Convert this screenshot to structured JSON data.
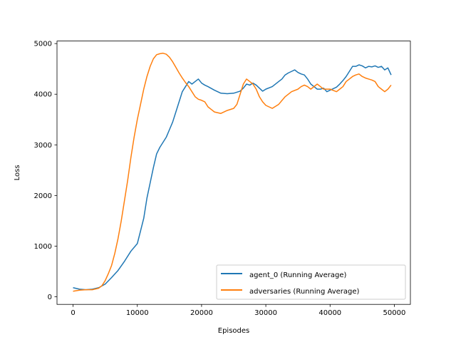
{
  "chart_data": {
    "type": "line",
    "title": "",
    "xlabel": "Episodes",
    "ylabel": "Loss",
    "xlim": [
      -2500,
      52500
    ],
    "ylim": [
      -150,
      5050
    ],
    "xticks": [
      0,
      10000,
      20000,
      30000,
      40000,
      50000
    ],
    "yticks": [
      0,
      1000,
      2000,
      3000,
      4000,
      5000
    ],
    "grid": false,
    "legend_position": "lower-right",
    "series": [
      {
        "name": "agent_0 (Running Average)",
        "color": "#1f77b4",
        "x": [
          0,
          1000,
          2000,
          3000,
          4000,
          5000,
          6000,
          7000,
          8000,
          9000,
          10000,
          10500,
          11000,
          11500,
          12000,
          12500,
          13000,
          13500,
          14000,
          14500,
          15000,
          15500,
          16000,
          16500,
          17000,
          17500,
          18000,
          18500,
          19000,
          19500,
          20000,
          20500,
          21000,
          22000,
          23000,
          24000,
          25000,
          26000,
          26500,
          27000,
          27500,
          28000,
          28500,
          29000,
          29500,
          30000,
          31000,
          32000,
          32500,
          33000,
          33500,
          34000,
          34500,
          35000,
          35500,
          36000,
          36500,
          37000,
          37500,
          38000,
          38500,
          39000,
          39500,
          40000,
          40500,
          41000,
          41500,
          42000,
          42500,
          43000,
          43500,
          44000,
          44500,
          45000,
          45500,
          46000,
          46500,
          47000,
          47500,
          48000,
          48500,
          49000,
          49500
        ],
        "values": [
          180,
          150,
          140,
          150,
          180,
          250,
          380,
          520,
          700,
          900,
          1050,
          1300,
          1550,
          1950,
          2250,
          2550,
          2820,
          2950,
          3050,
          3150,
          3300,
          3450,
          3650,
          3850,
          4050,
          4150,
          4250,
          4200,
          4250,
          4300,
          4220,
          4180,
          4150,
          4080,
          4020,
          4010,
          4020,
          4060,
          4120,
          4200,
          4180,
          4220,
          4180,
          4120,
          4060,
          4100,
          4150,
          4250,
          4300,
          4380,
          4420,
          4450,
          4480,
          4430,
          4400,
          4380,
          4300,
          4200,
          4150,
          4100,
          4100,
          4120,
          4050,
          4080,
          4110,
          4140,
          4200,
          4270,
          4350,
          4450,
          4550,
          4550,
          4580,
          4560,
          4520,
          4550,
          4540,
          4560,
          4530,
          4550,
          4480,
          4520,
          4380
        ]
      },
      {
        "name": "adversaries (Running Average)",
        "color": "#ff7f0e",
        "x": [
          0,
          1000,
          2000,
          3000,
          4000,
          4500,
          5000,
          5500,
          6000,
          6500,
          7000,
          7500,
          8000,
          8500,
          9000,
          9500,
          10000,
          10500,
          11000,
          11500,
          12000,
          12500,
          13000,
          13500,
          14000,
          14500,
          15000,
          15500,
          16000,
          16500,
          17000,
          17500,
          18000,
          18500,
          19000,
          19500,
          20000,
          20500,
          21000,
          21500,
          22000,
          23000,
          24000,
          25000,
          25500,
          26000,
          26500,
          27000,
          27500,
          28000,
          28500,
          29000,
          29500,
          30000,
          30500,
          31000,
          32000,
          33000,
          34000,
          35000,
          35500,
          36000,
          36500,
          37000,
          38000,
          38500,
          39000,
          40000,
          41000,
          41500,
          42000,
          42500,
          43000,
          43500,
          44000,
          44500,
          45000,
          45500,
          46000,
          46500,
          47000,
          47500,
          48000,
          48500,
          49000,
          49500
        ],
        "values": [
          110,
          130,
          140,
          140,
          170,
          220,
          320,
          460,
          620,
          860,
          1150,
          1500,
          1900,
          2300,
          2750,
          3150,
          3500,
          3800,
          4100,
          4350,
          4550,
          4700,
          4780,
          4800,
          4810,
          4790,
          4730,
          4640,
          4530,
          4420,
          4320,
          4230,
          4150,
          4050,
          3950,
          3900,
          3880,
          3850,
          3750,
          3700,
          3650,
          3620,
          3680,
          3720,
          3800,
          4000,
          4200,
          4300,
          4250,
          4200,
          4100,
          3950,
          3850,
          3780,
          3750,
          3720,
          3800,
          3950,
          4050,
          4100,
          4150,
          4180,
          4150,
          4100,
          4200,
          4150,
          4100,
          4100,
          4050,
          4100,
          4150,
          4250,
          4300,
          4350,
          4380,
          4400,
          4350,
          4320,
          4300,
          4280,
          4250,
          4150,
          4100,
          4050,
          4100,
          4180
        ]
      }
    ]
  }
}
